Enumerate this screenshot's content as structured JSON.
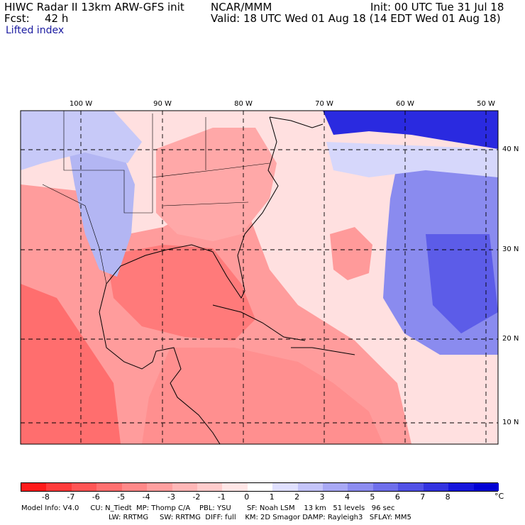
{
  "header": {
    "title": "HIWC Radar II 13km ARW-GFS init",
    "org": "NCAR/MMM",
    "init": "Init: 00 UTC Tue 31 Jul 18",
    "fcst_label": "Fcst:",
    "fcst_value": "42 h",
    "valid": "Valid: 18 UTC Wed 01 Aug 18 (14 EDT Wed 01 Aug 18)",
    "field": "Lifted index"
  },
  "map": {
    "lon_labels": [
      "100 W",
      "90 W",
      "80 W",
      "70 W",
      "60 W",
      "50 W"
    ],
    "lat_labels": [
      "40 N",
      "30 N",
      "20 N",
      "10 N"
    ]
  },
  "colorbar": {
    "ticks": [
      "-8",
      "-7",
      "-6",
      "-5",
      "-4",
      "-3",
      "-2",
      "-1",
      "0",
      "1",
      "2",
      "3",
      "4",
      "5",
      "6",
      "7",
      "8"
    ],
    "unit": "°C",
    "colors": [
      "#ff1a1a",
      "#ff3a3a",
      "#ff5555",
      "#ff6f6f",
      "#ff8888",
      "#ff9f9f",
      "#ffb6b6",
      "#ffcccc",
      "#ffe6e6",
      "#ffffff",
      "#e0e0ff",
      "#c4c4fa",
      "#a8a8f5",
      "#8c8cf0",
      "#6e6eeb",
      "#5050e6",
      "#3232e0",
      "#1414dc",
      "#0000d4"
    ]
  },
  "footer": {
    "line1": "Model Info: V4.0     CU: N_Tiedt  MP: Thomp C/A    PBL: YSU       SF: Noah LSM    13 km   51 levels   96 sec",
    "line2": "LW: RRTMG     SW: RRTMG  DIFF: full    KM: 2D Smagor DAMP: Rayleigh3   SFLAY: MM5"
  }
}
